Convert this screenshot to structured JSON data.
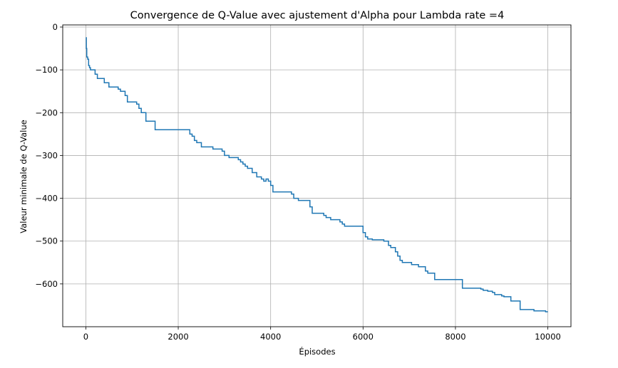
{
  "chart_data": {
    "type": "line",
    "title": "Convergence de Q-Value avec ajustement d'Alpha pour Lambda rate =4",
    "xlabel": "Épisodes",
    "ylabel": "Valeur minimale de Q-Value",
    "xlim": [
      -500,
      10500
    ],
    "ylim": [
      -700,
      5
    ],
    "xticks": [
      0,
      2000,
      4000,
      6000,
      8000,
      10000
    ],
    "xtick_labels": [
      "0",
      "2000",
      "4000",
      "6000",
      "8000",
      "10000"
    ],
    "yticks": [
      0,
      -100,
      -200,
      -300,
      -400,
      -500,
      -600
    ],
    "ytick_labels": [
      "0",
      "−100",
      "−200",
      "−300",
      "−400",
      "−500",
      "−600"
    ],
    "grid": true,
    "line_color": "#1f77b4",
    "series": [
      {
        "step": "post",
        "x": [
          0,
          10,
          20,
          40,
          60,
          80,
          100,
          150,
          200,
          250,
          300,
          400,
          500,
          600,
          700,
          750,
          800,
          850,
          900,
          1000,
          1100,
          1150,
          1200,
          1250,
          1300,
          1500,
          2200,
          2250,
          2300,
          2350,
          2400,
          2500,
          2750,
          2950,
          3000,
          3100,
          3150,
          3200,
          3300,
          3350,
          3400,
          3450,
          3500,
          3600,
          3700,
          3800,
          3850,
          3900,
          3950,
          4000,
          4050,
          4450,
          4500,
          4600,
          4850,
          4900,
          5000,
          5150,
          5200,
          5300,
          5400,
          5450,
          5500,
          5550,
          5600,
          5950,
          6000,
          6050,
          6100,
          6200,
          6300,
          6450,
          6550,
          6600,
          6700,
          6750,
          6800,
          6850,
          6900,
          7050,
          7150,
          7200,
          7300,
          7350,
          7400,
          7550,
          7600,
          8150,
          8200,
          8550,
          8600,
          8700,
          8800,
          8850,
          9000,
          9050,
          9200,
          9400,
          9700,
          9950,
          10000
        ],
        "y": [
          -25,
          -50,
          -70,
          -75,
          -90,
          -95,
          -100,
          -100,
          -110,
          -120,
          -120,
          -130,
          -140,
          -140,
          -145,
          -150,
          -150,
          -160,
          -175,
          -175,
          -180,
          -190,
          -200,
          -200,
          -220,
          -240,
          -240,
          -250,
          -255,
          -265,
          -270,
          -280,
          -285,
          -290,
          -300,
          -305,
          -305,
          -305,
          -310,
          -315,
          -320,
          -325,
          -330,
          -340,
          -350,
          -355,
          -360,
          -355,
          -360,
          -370,
          -385,
          -390,
          -400,
          -405,
          -420,
          -435,
          -435,
          -440,
          -445,
          -450,
          -450,
          -450,
          -455,
          -460,
          -465,
          -465,
          -480,
          -490,
          -495,
          -497,
          -497,
          -500,
          -510,
          -515,
          -525,
          -535,
          -545,
          -550,
          -550,
          -555,
          -555,
          -560,
          -560,
          -570,
          -575,
          -590,
          -590,
          -610,
          -610,
          -612,
          -615,
          -617,
          -620,
          -625,
          -628,
          -630,
          -640,
          -660,
          -663,
          -665,
          -665
        ]
      }
    ]
  }
}
